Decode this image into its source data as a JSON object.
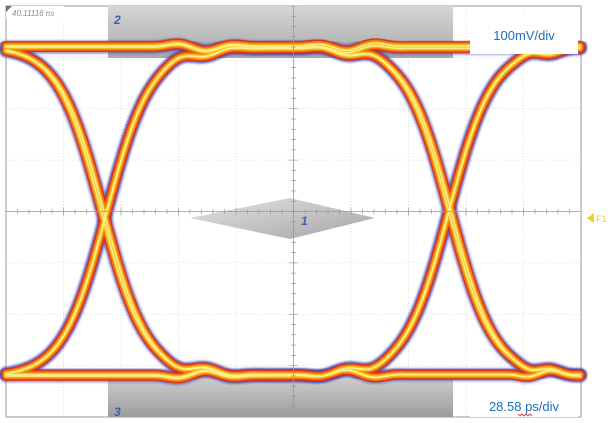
{
  "chart_data": {
    "type": "eye-diagram",
    "title": "",
    "timestamp": "40.11116 ns",
    "vertical_scale": "100mV/div",
    "horizontal_scale": "28.58 ps/div",
    "trigger_marker": "F1",
    "mask_labels": [
      "1",
      "2",
      "3"
    ],
    "divisions": {
      "x": 10,
      "y": 8
    },
    "grid": true,
    "levels": {
      "high": 3.2,
      "low": -3.2
    },
    "crossings": [
      -3.3,
      2.7
    ],
    "overshoot_regions": [
      [
        -2.6,
        -0.6
      ],
      [
        0.0,
        2.0
      ],
      [
        3.7,
        5.0
      ]
    ],
    "colors": {
      "core": "#e0301a",
      "mid": "#f07a16",
      "outer": "#f5c020",
      "glow": "#fbf08a",
      "edge": "#3a3ab0",
      "mask": "#b8b8b8",
      "text": "#1a6fc0",
      "marker": "#f0d020"
    }
  }
}
